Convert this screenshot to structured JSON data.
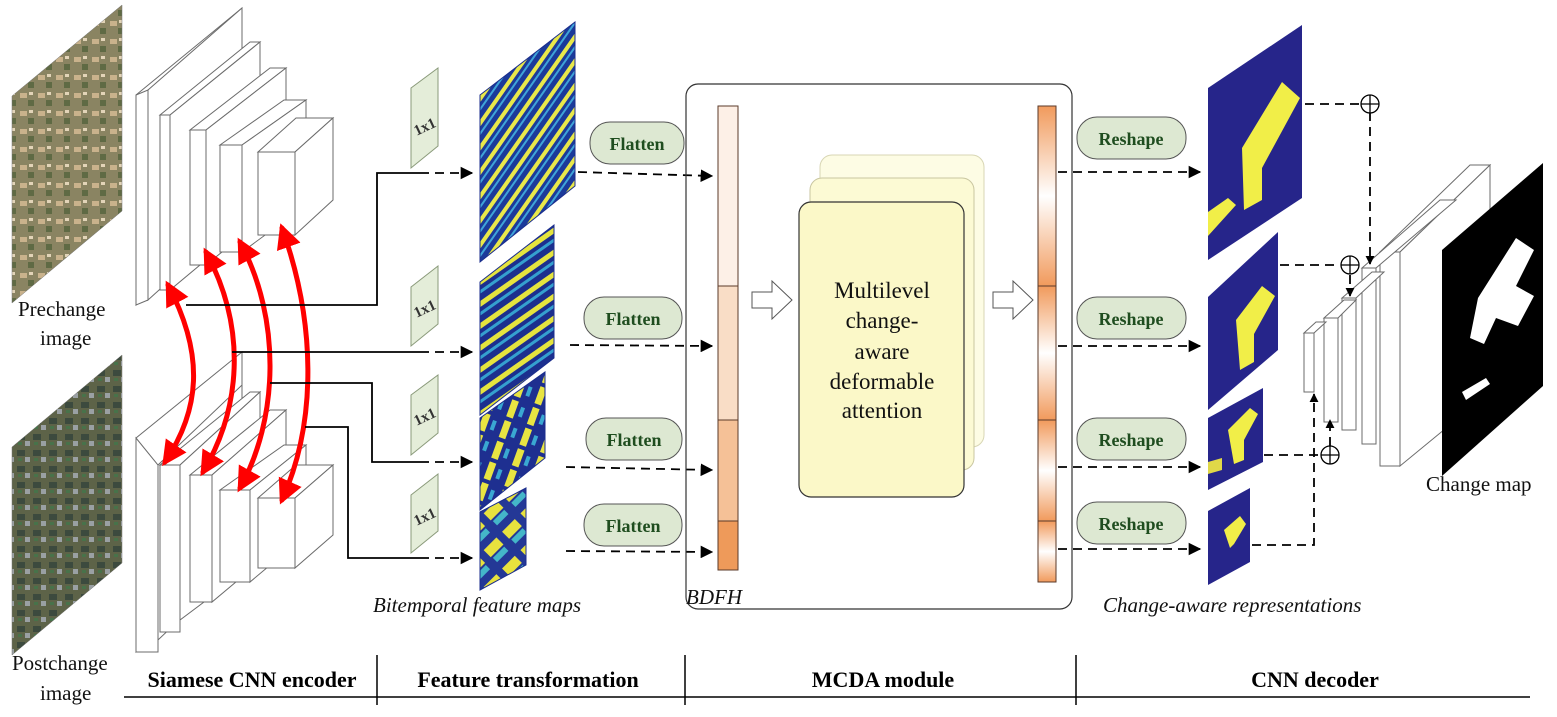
{
  "inputs": {
    "prechange_label_line1": "Prechange",
    "prechange_label_line2": "image",
    "postchange_label_line1": "Postchange",
    "postchange_label_line2": "image"
  },
  "conv_labels": [
    "1x1",
    "1x1",
    "1x1",
    "1x1"
  ],
  "flatten_labels": [
    "Flatten",
    "Flatten",
    "Flatten",
    "Flatten"
  ],
  "reshape_labels": [
    "Reshape",
    "Reshape",
    "Reshape",
    "Reshape"
  ],
  "captions": {
    "bitemporal": "Bitemporal feature maps",
    "bdfh": "BDFH",
    "change_aware": "Change-aware representations",
    "change_map": "Change map"
  },
  "mcda": {
    "line1": "Multilevel",
    "line2": "change-",
    "line3": "aware",
    "line4": "deformable",
    "line5": "attention"
  },
  "sections": [
    "Siamese CNN encoder",
    "Feature transformation",
    "MCDA module",
    "CNN decoder"
  ],
  "colors": {
    "skip_arrow": "#ff0000",
    "pill_fill": "#dde8d2",
    "conv_fill": "#e4edd9",
    "mcda_fill": "#fbf8c8",
    "feature_bg": "#1b2d8c",
    "feature_hot": "#f5f03c",
    "token_light": "#fbeee4",
    "token_dark": "#ee9a5a",
    "aerial_green": "#6e7a52",
    "aerial_sand": "#c4a882"
  },
  "icons": [
    "plus-circle-icon",
    "hollow-arrow-icon",
    "dashed-arrow-icon"
  ]
}
